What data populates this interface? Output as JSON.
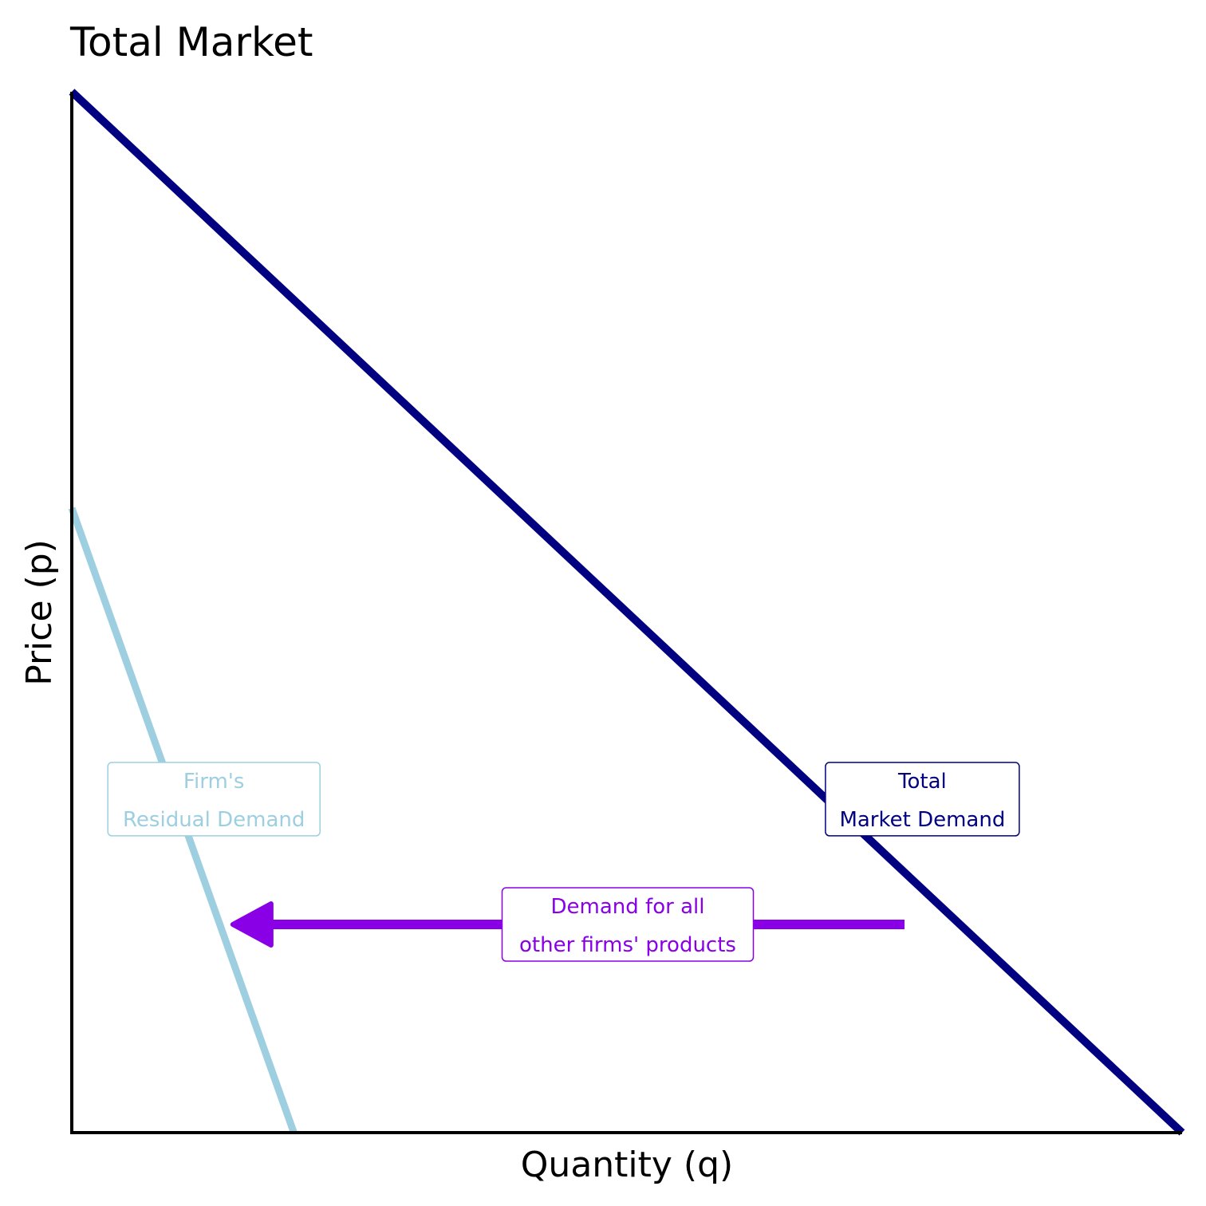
{
  "chart_data": {
    "type": "line",
    "title": "Total Market",
    "xlabel": "Quantity (q)",
    "ylabel": "Price (p)",
    "xlim": [
      0,
      10
    ],
    "ylim": [
      0,
      10
    ],
    "grid": false,
    "ticks": false,
    "colors": {
      "market": "#000080",
      "residual": "#9ECFE0",
      "arrow": "#8A00E6",
      "axis": "#000000"
    },
    "series": [
      {
        "key": "market",
        "points": [
          [
            0,
            10
          ],
          [
            10,
            0
          ]
        ]
      },
      {
        "key": "residual",
        "points": [
          [
            0,
            6
          ],
          [
            2,
            0
          ]
        ]
      }
    ],
    "arrow": {
      "from": [
        7.5,
        2
      ],
      "to": [
        1.45,
        2
      ]
    },
    "annotations": [
      {
        "key": "residual",
        "lines": [
          "Firm's",
          "Residual Demand"
        ],
        "at": [
          1,
          3.2
        ]
      },
      {
        "key": "market",
        "lines": [
          "Total",
          "Market Demand"
        ],
        "at": [
          7,
          3.2
        ]
      },
      {
        "key": "arrow",
        "lines": [
          "Demand for all",
          "other firms' products"
        ],
        "at": [
          5,
          2
        ]
      }
    ]
  }
}
